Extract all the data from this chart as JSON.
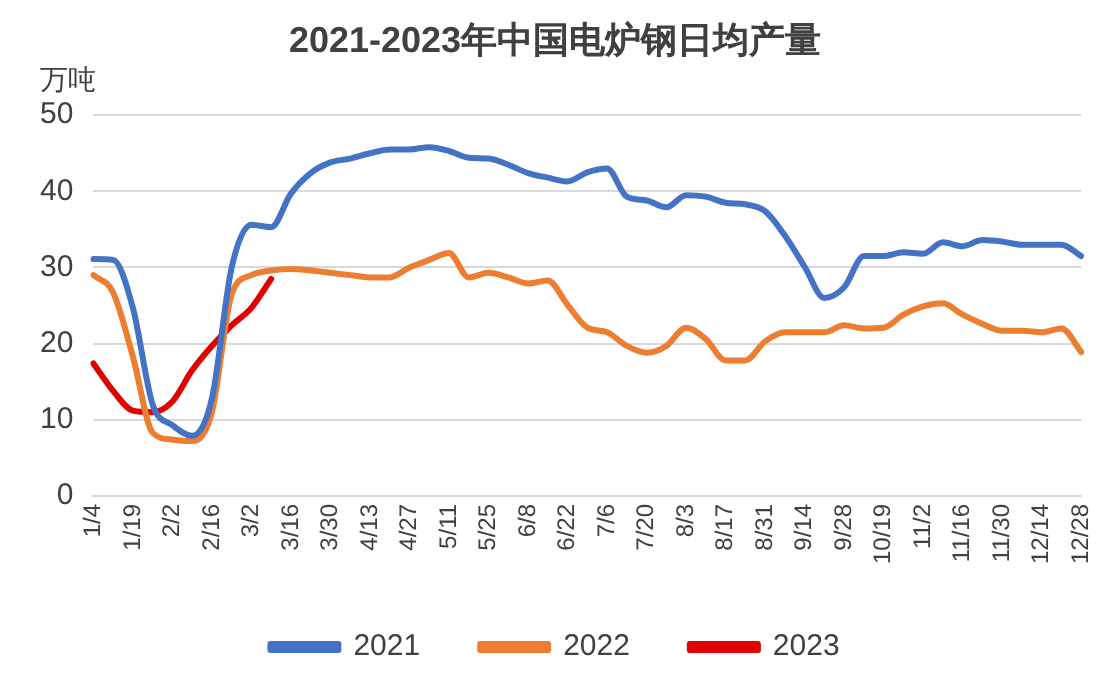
{
  "chart_data": {
    "type": "line",
    "title": "2021-2023年中国电炉钢日均产量",
    "ylabel": "万吨",
    "categories": [
      "1/4",
      null,
      "1/19",
      null,
      "2/2",
      null,
      "2/16",
      null,
      "3/2",
      null,
      "3/16",
      null,
      "3/30",
      null,
      "4/13",
      null,
      "4/27",
      null,
      "5/11",
      null,
      "5/25",
      null,
      "6/8",
      null,
      "6/22",
      null,
      "7/6",
      null,
      "7/20",
      null,
      "8/3",
      null,
      "8/17",
      null,
      "8/31",
      null,
      "9/14",
      null,
      "9/28",
      null,
      "10/19",
      null,
      "11/2",
      null,
      "11/16",
      null,
      "11/30",
      null,
      "12/14",
      null,
      "12/28"
    ],
    "series": [
      {
        "name": "2021",
        "color": "#4472c4",
        "values": [
          31.1,
          31,
          24.7,
          12,
          9.3,
          7.9,
          12.8,
          30,
          35.6,
          35.3,
          39.7,
          42.4,
          43.8,
          44.3,
          45,
          45.5,
          45.5,
          45.8,
          45.3,
          44.4,
          44.3,
          43.5,
          42.4,
          41.8,
          41.3,
          42.5,
          43,
          39.3,
          38.8,
          37.9,
          39.5,
          39.3,
          38.5,
          38.3,
          37.4,
          34.2,
          30.1,
          26,
          27.4,
          31.5,
          31.5,
          32,
          31.8,
          33.3,
          32.8,
          33.6,
          33.4,
          33,
          33,
          33,
          31.5
        ]
      },
      {
        "name": "2022",
        "color": "#ed7d31",
        "values": [
          29,
          26.7,
          18.3,
          8.3,
          7.4,
          7.2,
          11,
          26.5,
          29,
          29.6,
          29.8,
          29.6,
          29.3,
          29,
          28.7,
          28.7,
          30,
          31,
          31.9,
          28.7,
          29.3,
          28.7,
          27.9,
          28.3,
          25.1,
          22.1,
          21.5,
          19.7,
          18.8,
          19.7,
          22.1,
          20.6,
          17.8,
          17.8,
          20.3,
          21.5,
          21.5,
          21.5,
          22.4,
          22,
          22.1,
          23.8,
          24.9,
          25.3,
          23.8,
          22.6,
          21.7,
          21.7,
          21.5,
          22,
          18.9
        ]
      },
      {
        "name": "2023",
        "color": "#e00000",
        "values": [
          17.4,
          13.8,
          11.2,
          11,
          12.4,
          16.5,
          19.7,
          22.4,
          24.7,
          28.5,
          null,
          null,
          null,
          null,
          null,
          null,
          null,
          null,
          null,
          null,
          null,
          null,
          null,
          null,
          null,
          null,
          null,
          null,
          null,
          null,
          null,
          null,
          null,
          null,
          null,
          null,
          null,
          null,
          null,
          null,
          null,
          null,
          null,
          null,
          null,
          null,
          null,
          null,
          null,
          null,
          null
        ]
      }
    ],
    "ylim": [
      0,
      50
    ],
    "yticks": [
      0,
      10,
      20,
      30,
      40,
      50
    ],
    "grid": "y",
    "legend": "bottom",
    "marker": "none",
    "line_style": "solid"
  }
}
